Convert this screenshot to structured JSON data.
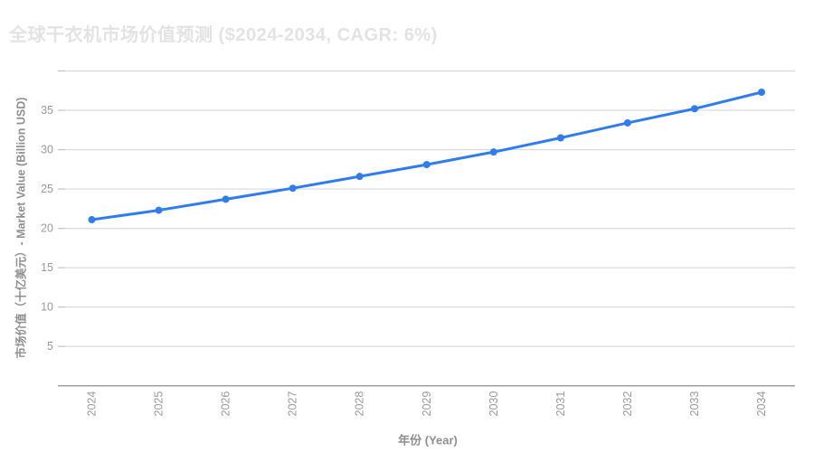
{
  "colors": {
    "background": "#ffffff",
    "title": "#e3e3e3",
    "axis_title": "#8f8f8f",
    "tick_label": "#9a9a9a",
    "grid": "#d9d9d9",
    "tick_mark": "#c2c2c2",
    "axis_line": "#a0a0a0",
    "line": "#2e7cf0",
    "point": "#2e7cf0"
  },
  "chart_data": {
    "type": "line",
    "title": "全球干衣机市场价值预测 ($2024-2034, CAGR: 6%)",
    "xlabel": "年份 (Year)",
    "ylabel": "市场价值（十亿美元）- Market Value (Billion USD)",
    "x": [
      "2024",
      "2025",
      "2026",
      "2027",
      "2028",
      "2029",
      "2030",
      "2031",
      "2032",
      "2033",
      "2034"
    ],
    "series": [
      {
        "name": "Market Value (Billion USD)",
        "values": [
          21.1,
          22.3,
          23.7,
          25.1,
          26.6,
          28.1,
          29.7,
          31.5,
          33.4,
          35.2,
          37.3
        ]
      }
    ],
    "ylim": [
      0,
      40
    ],
    "y_tick_labels": [
      5,
      10,
      15,
      20,
      25,
      30,
      35
    ],
    "gridline_values": [
      5,
      10,
      15,
      20,
      25,
      30,
      35,
      40
    ],
    "grid": "horizontal",
    "legend": "none",
    "x_tick_rotation": -90,
    "cagr_label": "6%"
  }
}
